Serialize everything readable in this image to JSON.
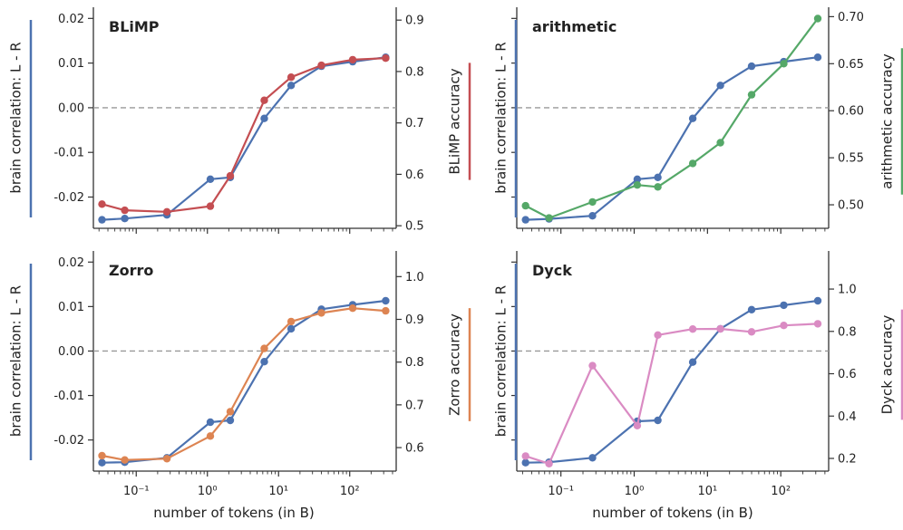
{
  "chart_data": [
    {
      "type": "line",
      "title": "BLiMP",
      "xlabel": "",
      "ylabel_left": "brain correlation: L - R",
      "ylabel_right": "BLiMP accuracy",
      "xscale": "log",
      "xlim": [
        0.025,
        450
      ],
      "ylim_left": [
        -0.027,
        0.0225
      ],
      "ylim_right": [
        0.495,
        0.925
      ],
      "yticks_left": [
        -0.02,
        -0.01,
        0.0,
        0.01,
        0.02
      ],
      "ytick_labels_left": [
        "-0.02",
        "-0.01",
        "0.00",
        "0.01",
        "0.02"
      ],
      "yticks_right": [
        0.5,
        0.6,
        0.7,
        0.8,
        0.9
      ],
      "ytick_labels_right": [
        "0.5",
        "0.6",
        "0.7",
        "0.8",
        "0.9"
      ],
      "reference_line_left": 0.0,
      "series": [
        {
          "name": "brain correlation: L - R",
          "axis": "left",
          "color": "#4c72b0",
          "x": [
            0.033,
            0.069,
            0.27,
            1.1,
            2.1,
            6.3,
            15,
            40,
            110,
            320
          ],
          "y": [
            -0.0251,
            -0.0248,
            -0.024,
            -0.016,
            -0.0156,
            -0.0024,
            0.005,
            0.0093,
            0.0103,
            0.0113
          ]
        },
        {
          "name": "BLiMP accuracy",
          "axis": "right",
          "color": "#c44e52",
          "x": [
            0.033,
            0.069,
            0.27,
            1.1,
            2.1,
            6.3,
            15,
            40,
            110,
            320
          ],
          "y": [
            0.542,
            0.53,
            0.527,
            0.538,
            0.597,
            0.744,
            0.789,
            0.812,
            0.823,
            0.826
          ]
        }
      ]
    },
    {
      "type": "line",
      "title": "arithmetic",
      "xlabel": "",
      "ylabel_left": "brain correlation: L - R",
      "ylabel_right": "arithmetic accuracy",
      "xscale": "log",
      "xlim": [
        0.025,
        450
      ],
      "ylim_left": [
        -0.027,
        0.0225
      ],
      "ylim_right": [
        0.475,
        0.71
      ],
      "yticks_left": [
        -0.02,
        -0.01,
        0.0,
        0.01,
        0.02
      ],
      "ytick_labels_left": [
        "",
        "",
        "",
        "",
        ""
      ],
      "yticks_right": [
        0.5,
        0.55,
        0.6,
        0.65,
        0.7
      ],
      "ytick_labels_right": [
        "0.50",
        "0.55",
        "0.60",
        "0.65",
        "0.70"
      ],
      "reference_line_left": 0.0,
      "series": [
        {
          "name": "brain correlation: L - R",
          "axis": "left",
          "color": "#4c72b0",
          "x": [
            0.033,
            0.069,
            0.27,
            1.1,
            2.1,
            6.3,
            15,
            40,
            110,
            320
          ],
          "y": [
            -0.0251,
            -0.0249,
            -0.0242,
            -0.016,
            -0.0156,
            -0.0024,
            0.005,
            0.0093,
            0.0103,
            0.0113
          ]
        },
        {
          "name": "arithmetic accuracy",
          "axis": "right",
          "color": "#55a868",
          "x": [
            0.033,
            0.069,
            0.27,
            1.1,
            2.1,
            6.3,
            15,
            40,
            110,
            320
          ],
          "y": [
            0.499,
            0.486,
            0.503,
            0.521,
            0.519,
            0.544,
            0.566,
            0.617,
            0.65,
            0.698
          ]
        }
      ]
    },
    {
      "type": "line",
      "title": "Zorro",
      "xlabel": "number of tokens (in B)",
      "ylabel_left": "brain correlation: L - R",
      "ylabel_right": "Zorro accuracy",
      "xscale": "log",
      "xlim": [
        0.025,
        450
      ],
      "ylim_left": [
        -0.027,
        0.0225
      ],
      "ylim_right": [
        0.545,
        1.06
      ],
      "yticks_left": [
        -0.02,
        -0.01,
        0.0,
        0.01,
        0.02
      ],
      "ytick_labels_left": [
        "-0.02",
        "-0.01",
        "0.00",
        "0.01",
        "0.02"
      ],
      "yticks_right": [
        0.6,
        0.7,
        0.8,
        0.9,
        1.0
      ],
      "ytick_labels_right": [
        "0.6",
        "0.7",
        "0.8",
        "0.9",
        "1.0"
      ],
      "xticks": [
        0.1,
        1,
        10,
        100
      ],
      "xtick_labels": [
        "10⁻¹",
        "10⁰",
        "10¹",
        "10²"
      ],
      "reference_line_left": 0.0,
      "series": [
        {
          "name": "brain correlation: L - R",
          "axis": "left",
          "color": "#4c72b0",
          "x": [
            0.033,
            0.069,
            0.27,
            1.1,
            2.1,
            6.3,
            15,
            40,
            110,
            320
          ],
          "y": [
            -0.0251,
            -0.025,
            -0.024,
            -0.016,
            -0.0156,
            -0.0024,
            0.005,
            0.0094,
            0.0104,
            0.0113
          ]
        },
        {
          "name": "Zorro accuracy",
          "axis": "right",
          "color": "#dd8452",
          "x": [
            0.033,
            0.069,
            0.27,
            1.1,
            2.1,
            6.3,
            15,
            40,
            110,
            320
          ],
          "y": [
            0.581,
            0.571,
            0.574,
            0.627,
            0.684,
            0.832,
            0.895,
            0.915,
            0.926,
            0.92
          ]
        }
      ]
    },
    {
      "type": "line",
      "title": "Dyck",
      "xlabel": "number of tokens (in B)",
      "ylabel_left": "brain correlation: L - R",
      "ylabel_right": "Dyck accuracy",
      "xscale": "log",
      "xlim": [
        0.025,
        450
      ],
      "ylim_left": [
        -0.027,
        0.0225
      ],
      "ylim_right": [
        0.14,
        1.18
      ],
      "yticks_left": [
        -0.02,
        -0.01,
        0.0,
        0.01,
        0.02
      ],
      "ytick_labels_left": [
        "",
        "",
        "",
        "",
        ""
      ],
      "yticks_right": [
        0.2,
        0.4,
        0.6,
        0.8,
        1.0
      ],
      "ytick_labels_right": [
        "0.2",
        "0.4",
        "0.6",
        "0.8",
        "1.0"
      ],
      "xticks": [
        0.1,
        1,
        10,
        100
      ],
      "xtick_labels": [
        "10⁻¹",
        "10⁰",
        "10¹",
        "10²"
      ],
      "reference_line_left": 0.0,
      "series": [
        {
          "name": "brain correlation: L - R",
          "axis": "left",
          "color": "#4c72b0",
          "x": [
            0.033,
            0.069,
            0.27,
            1.1,
            2.1,
            6.3,
            15,
            40,
            110,
            320
          ],
          "y": [
            -0.0251,
            -0.025,
            -0.024,
            -0.0158,
            -0.0156,
            -0.0025,
            0.005,
            0.0093,
            0.0103,
            0.0113
          ]
        },
        {
          "name": "Dyck accuracy",
          "axis": "right",
          "color": "#da8bc3",
          "x": [
            0.033,
            0.069,
            0.27,
            1.1,
            2.1,
            6.3,
            15,
            40,
            110,
            320
          ],
          "y": [
            0.211,
            0.175,
            0.638,
            0.355,
            0.783,
            0.811,
            0.812,
            0.798,
            0.828,
            0.836
          ]
        }
      ]
    }
  ]
}
